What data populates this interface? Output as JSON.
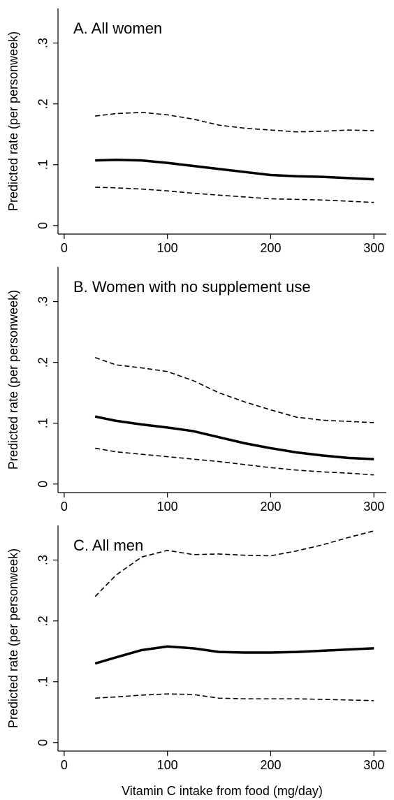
{
  "chart_data": [
    {
      "type": "line",
      "title": "A. All women",
      "ylabel": "Predicted rate (per personweek)",
      "x": [
        30,
        50,
        75,
        100,
        125,
        150,
        175,
        200,
        225,
        250,
        275,
        300
      ],
      "series": [
        {
          "color": "#000000",
          "style": "solid",
          "values": [
            0.107,
            0.108,
            0.107,
            0.103,
            0.098,
            0.093,
            0.088,
            0.083,
            0.081,
            0.08,
            0.078,
            0.076
          ]
        },
        {
          "color": "#000000",
          "style": "dashed",
          "values": [
            0.18,
            0.184,
            0.186,
            0.182,
            0.175,
            0.165,
            0.16,
            0.157,
            0.154,
            0.155,
            0.157,
            0.156
          ]
        },
        {
          "color": "#000000",
          "style": "dashed",
          "values": [
            0.063,
            0.062,
            0.06,
            0.057,
            0.053,
            0.05,
            0.047,
            0.044,
            0.043,
            0.042,
            0.04,
            0.038
          ]
        }
      ],
      "xlim": [
        -6,
        312
      ],
      "xticks": [
        0,
        100,
        200,
        300
      ],
      "ylim": [
        -0.014,
        0.357
      ],
      "yticks": [
        0,
        {
          "value": 0.1,
          "label": ".1"
        },
        {
          "value": 0.2,
          "label": ".2"
        },
        {
          "value": 0.3,
          "label": ".3"
        }
      ]
    },
    {
      "type": "line",
      "title": "B. Women with no supplement use",
      "ylabel": "Predicted rate (per personweek)",
      "x": [
        30,
        50,
        75,
        100,
        125,
        150,
        175,
        200,
        225,
        250,
        275,
        300
      ],
      "series": [
        {
          "color": "#000000",
          "style": "solid",
          "values": [
            0.111,
            0.104,
            0.098,
            0.093,
            0.087,
            0.077,
            0.067,
            0.059,
            0.052,
            0.047,
            0.043,
            0.041
          ]
        },
        {
          "color": "#000000",
          "style": "dashed",
          "values": [
            0.208,
            0.196,
            0.191,
            0.185,
            0.17,
            0.15,
            0.135,
            0.122,
            0.11,
            0.105,
            0.103,
            0.101
          ]
        },
        {
          "color": "#000000",
          "style": "dashed",
          "values": [
            0.059,
            0.053,
            0.049,
            0.045,
            0.041,
            0.037,
            0.032,
            0.027,
            0.023,
            0.02,
            0.018,
            0.015
          ]
        }
      ],
      "xlim": [
        -6,
        312
      ],
      "xticks": [
        0,
        100,
        200,
        300
      ],
      "ylim": [
        -0.014,
        0.357
      ],
      "yticks": [
        0,
        {
          "value": 0.1,
          "label": ".1"
        },
        {
          "value": 0.2,
          "label": ".2"
        },
        {
          "value": 0.3,
          "label": ".3"
        }
      ]
    },
    {
      "type": "line",
      "title": "C. All men",
      "ylabel": "Predicted rate (per personweek)",
      "xlabel": "Vitamin C intake from food (mg/day)",
      "x": [
        30,
        50,
        75,
        100,
        125,
        150,
        175,
        200,
        225,
        250,
        275,
        300
      ],
      "series": [
        {
          "color": "#000000",
          "style": "solid",
          "values": [
            0.13,
            0.14,
            0.152,
            0.158,
            0.155,
            0.149,
            0.148,
            0.148,
            0.149,
            0.151,
            0.153,
            0.155
          ]
        },
        {
          "color": "#000000",
          "style": "dashed",
          "values": [
            0.24,
            0.275,
            0.305,
            0.316,
            0.309,
            0.31,
            0.308,
            0.307,
            0.315,
            0.325,
            0.337,
            0.348
          ]
        },
        {
          "color": "#000000",
          "style": "dashed",
          "values": [
            0.073,
            0.075,
            0.078,
            0.08,
            0.079,
            0.073,
            0.072,
            0.072,
            0.072,
            0.071,
            0.07,
            0.069
          ]
        }
      ],
      "xlim": [
        -6,
        312
      ],
      "xticks": [
        0,
        100,
        200,
        300
      ],
      "ylim": [
        -0.014,
        0.357
      ],
      "yticks": [
        0,
        {
          "value": 0.1,
          "label": ".1"
        },
        {
          "value": 0.2,
          "label": ".2"
        },
        {
          "value": 0.3,
          "label": ".3"
        }
      ]
    }
  ]
}
